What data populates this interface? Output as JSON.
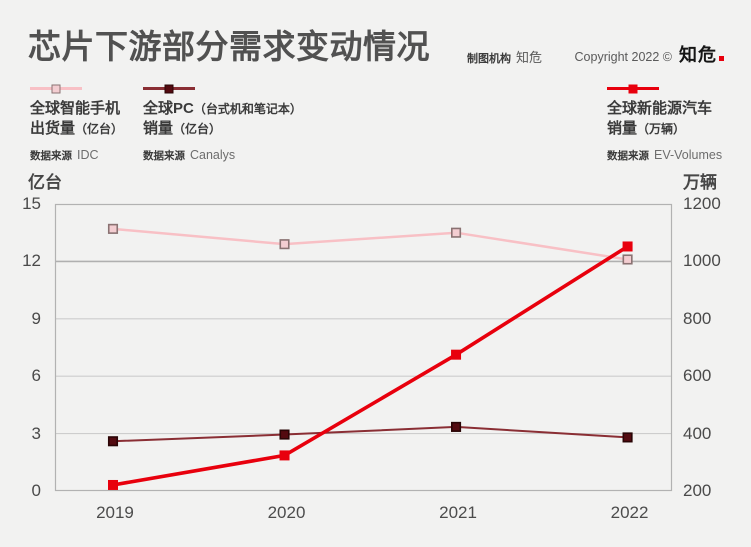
{
  "header": {
    "title": "芯片下游部分需求变动情况",
    "maker_label": "制图机构",
    "maker_value": "知危",
    "copyright": "Copyright 2022 ©",
    "brand": "知危"
  },
  "legend": [
    {
      "name1": "全球智能手机",
      "name1_paren": "",
      "name2": "出货量",
      "name2_paren": "（亿台）",
      "source_label": "数据来源",
      "source_value": "IDC"
    },
    {
      "name1": "全球PC",
      "name1_paren": "（台式机和笔记本）",
      "name2": "销量",
      "name2_paren": "（亿台）",
      "source_label": "数据来源",
      "source_value": "Canalys"
    },
    {
      "name1": "全球新能源汽车",
      "name1_paren": "",
      "name2": "销量",
      "name2_paren": "（万辆）",
      "source_label": "数据来源",
      "source_value": "EV-Volumes"
    }
  ],
  "chart_data": {
    "type": "line",
    "categories": [
      "2019",
      "2020",
      "2021",
      "2022"
    ],
    "left_axis": {
      "unit": "亿台",
      "ticks": [
        15,
        12,
        9,
        6,
        3,
        0
      ],
      "range": [
        0,
        15
      ],
      "emphasis_tick": 12
    },
    "right_axis": {
      "unit": "万辆",
      "ticks": [
        1200,
        1000,
        800,
        600,
        400,
        200
      ],
      "range": [
        200,
        1200
      ]
    },
    "series": [
      {
        "name": "全球智能手机出货量（亿台）",
        "axis": "left",
        "values": [
          13.7,
          12.9,
          13.5,
          12.1
        ],
        "color": "#f8c0c5",
        "line_width": 2.5,
        "marker": "hollow-square",
        "marker_size": 8.5,
        "marker_fill": "#f3cdd1",
        "marker_stroke": "#8a7272",
        "marker_stroke_width": 1.6
      },
      {
        "name": "全球PC（台式机和笔记本）销量（亿台）",
        "axis": "left",
        "values": [
          2.6,
          2.95,
          3.35,
          2.8
        ],
        "color": "#8a2e34",
        "line_width": 2,
        "marker": "filled-square",
        "marker_size": 8.5,
        "marker_fill": "#530a10",
        "marker_stroke": "#2a0506",
        "marker_stroke_width": 1.6
      },
      {
        "name": "全球新能源汽车销量（万辆）",
        "axis": "right",
        "values": [
          221,
          324,
          675,
          1052
        ],
        "color": "#e8000d",
        "line_width": 3.6,
        "marker": "filled-square",
        "marker_size": 10,
        "marker_fill": "#e8000d",
        "marker_stroke": "#e8000d",
        "marker_stroke_width": 0
      }
    ],
    "grid": "horizontal",
    "grid_color": "#cdcdcd",
    "grid_emphasis_color": "#b0b0b0",
    "border_color": "#b2b2b2",
    "legend_position": "top"
  }
}
